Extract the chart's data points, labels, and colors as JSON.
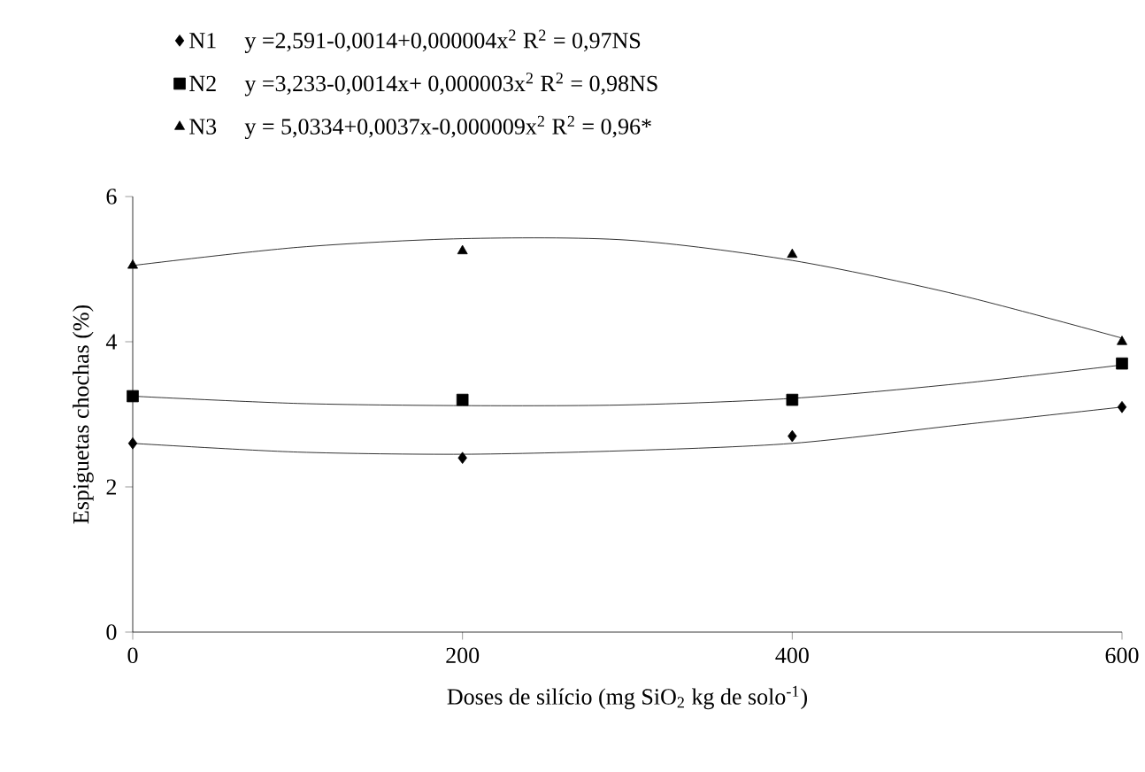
{
  "chart_data": {
    "type": "scatter",
    "xlabel": "Doses de silício (mg SiO$_{2}$ kg de solo$^{-1}$)",
    "ylabel": "Espiguetas chochas (%)",
    "xlim": [
      0,
      600
    ],
    "ylim": [
      0,
      6
    ],
    "xticks": [
      0,
      200,
      400,
      600
    ],
    "yticks": [
      0,
      2,
      4,
      6
    ],
    "grid": false,
    "legend": "top",
    "annotations": [
      "y =2,591-0,0014+0,000004x$^{2}$ R$^{2}$ = 0,97NS",
      "y =3,233-0,0014x+ 0,000003x$^{2}$ R$^{2}$ = 0,98NS",
      "y = 5,0334+0,0037x-0,000009x$^{2}$ R$^{2}$ = 0,96*"
    ],
    "series": [
      {
        "name": "N1",
        "marker": "diamond",
        "color": "#000000",
        "x": [
          0,
          200,
          400,
          600
        ],
        "values": [
          2.6,
          2.4,
          2.7,
          3.1
        ]
      },
      {
        "name": "N2",
        "marker": "square",
        "color": "#000000",
        "x": [
          0,
          200,
          400,
          600
        ],
        "values": [
          3.25,
          3.2,
          3.2,
          3.7
        ]
      },
      {
        "name": "N3",
        "marker": "triangle",
        "color": "#000000",
        "x": [
          0,
          200,
          400,
          600
        ],
        "values": [
          5.05,
          5.25,
          5.2,
          4.0
        ]
      },
      {
        "type": "line",
        "marker": "none",
        "color": "#000000",
        "x": [
          0,
          100,
          200,
          300,
          400,
          500,
          600
        ],
        "values": [
          2.6,
          2.48,
          2.45,
          2.5,
          2.6,
          2.85,
          3.1
        ]
      },
      {
        "type": "line",
        "marker": "none",
        "color": "#000000",
        "x": [
          0,
          100,
          200,
          300,
          400,
          500,
          600
        ],
        "values": [
          3.25,
          3.15,
          3.12,
          3.13,
          3.22,
          3.42,
          3.68
        ]
      },
      {
        "type": "line",
        "marker": "none",
        "color": "#000000",
        "x": [
          0,
          100,
          200,
          300,
          400,
          500,
          600
        ],
        "values": [
          5.05,
          5.3,
          5.42,
          5.4,
          5.12,
          4.65,
          4.05
        ]
      }
    ]
  }
}
